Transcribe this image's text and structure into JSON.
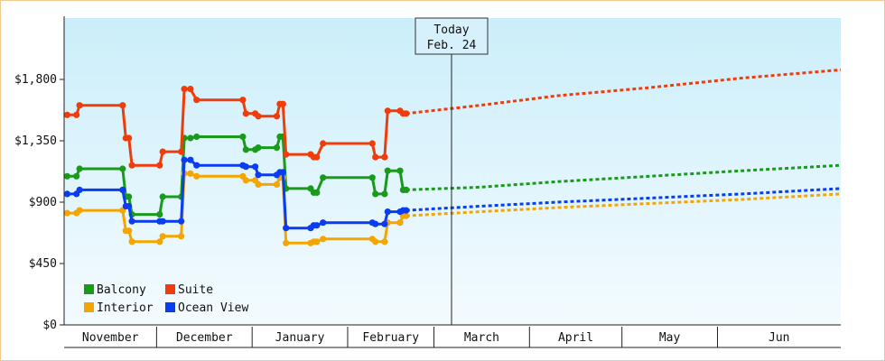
{
  "chart_data": {
    "type": "line",
    "title": "",
    "xlabel": "",
    "ylabel": "",
    "ylim": [
      0,
      2250
    ],
    "grid": false,
    "y_ticks": [
      "$0",
      "$450",
      "$900",
      "$1,350",
      "$1,800"
    ],
    "y_tick_values": [
      0,
      450,
      900,
      1350,
      1800
    ],
    "months": [
      "November",
      "December",
      "January",
      "February",
      "March",
      "April",
      "May",
      "Jun"
    ],
    "today_marker": {
      "line1": "Today",
      "line2": "Feb. 24"
    },
    "legend_position": "bottom-left",
    "series": [
      {
        "name": "Balcony",
        "color": "#1a9a1a",
        "points": [
          [
            1,
            1090
          ],
          [
            4,
            1090
          ],
          [
            5,
            1145
          ],
          [
            19,
            1145
          ],
          [
            20,
            940
          ],
          [
            21,
            940
          ],
          [
            22,
            810
          ],
          [
            31,
            810
          ],
          [
            32,
            940
          ],
          [
            38,
            940
          ],
          [
            39,
            1370
          ],
          [
            41,
            1370
          ],
          [
            43,
            1380
          ],
          [
            58,
            1380
          ],
          [
            59,
            1285
          ],
          [
            62,
            1285
          ],
          [
            63,
            1300
          ],
          [
            69,
            1300
          ],
          [
            70,
            1380
          ],
          [
            71,
            1380
          ],
          [
            72,
            1000
          ],
          [
            80,
            1000
          ],
          [
            81,
            970
          ],
          [
            82,
            970
          ],
          [
            84,
            1080
          ],
          [
            100,
            1080
          ],
          [
            101,
            960
          ],
          [
            104,
            960
          ],
          [
            105,
            1130
          ],
          [
            109,
            1130
          ],
          [
            110,
            990
          ],
          [
            111,
            990
          ]
        ],
        "forecast": [
          [
            111,
            990
          ],
          [
            135,
            1010
          ],
          [
            160,
            1050
          ],
          [
            190,
            1090
          ],
          [
            220,
            1130
          ],
          [
            252,
            1170
          ]
        ]
      },
      {
        "name": "Suite",
        "color": "#f03c0a",
        "points": [
          [
            1,
            1540
          ],
          [
            4,
            1540
          ],
          [
            5,
            1610
          ],
          [
            19,
            1610
          ],
          [
            20,
            1370
          ],
          [
            21,
            1370
          ],
          [
            22,
            1170
          ],
          [
            31,
            1170
          ],
          [
            32,
            1270
          ],
          [
            38,
            1270
          ],
          [
            39,
            1730
          ],
          [
            41,
            1730
          ],
          [
            43,
            1650
          ],
          [
            58,
            1650
          ],
          [
            59,
            1550
          ],
          [
            62,
            1550
          ],
          [
            63,
            1530
          ],
          [
            69,
            1530
          ],
          [
            70,
            1620
          ],
          [
            71,
            1620
          ],
          [
            72,
            1250
          ],
          [
            80,
            1250
          ],
          [
            81,
            1230
          ],
          [
            82,
            1230
          ],
          [
            84,
            1330
          ],
          [
            100,
            1330
          ],
          [
            101,
            1230
          ],
          [
            104,
            1230
          ],
          [
            105,
            1570
          ],
          [
            109,
            1570
          ],
          [
            110,
            1550
          ],
          [
            111,
            1550
          ]
        ],
        "forecast": [
          [
            111,
            1550
          ],
          [
            135,
            1610
          ],
          [
            160,
            1680
          ],
          [
            190,
            1740
          ],
          [
            220,
            1810
          ],
          [
            252,
            1870
          ]
        ]
      },
      {
        "name": "Interior",
        "color": "#f5a500",
        "points": [
          [
            1,
            820
          ],
          [
            4,
            820
          ],
          [
            5,
            840
          ],
          [
            19,
            840
          ],
          [
            20,
            690
          ],
          [
            21,
            690
          ],
          [
            22,
            610
          ],
          [
            31,
            610
          ],
          [
            32,
            650
          ],
          [
            38,
            650
          ],
          [
            39,
            1110
          ],
          [
            41,
            1110
          ],
          [
            43,
            1090
          ],
          [
            58,
            1090
          ],
          [
            59,
            1060
          ],
          [
            62,
            1060
          ],
          [
            63,
            1030
          ],
          [
            69,
            1030
          ],
          [
            70,
            1080
          ],
          [
            71,
            1080
          ],
          [
            72,
            600
          ],
          [
            80,
            600
          ],
          [
            81,
            610
          ],
          [
            82,
            610
          ],
          [
            84,
            630
          ],
          [
            100,
            630
          ],
          [
            101,
            610
          ],
          [
            104,
            610
          ],
          [
            105,
            750
          ],
          [
            109,
            750
          ],
          [
            110,
            800
          ],
          [
            111,
            800
          ]
        ],
        "forecast": [
          [
            111,
            800
          ],
          [
            135,
            830
          ],
          [
            160,
            860
          ],
          [
            190,
            890
          ],
          [
            220,
            920
          ],
          [
            252,
            960
          ]
        ]
      },
      {
        "name": "Ocean View",
        "color": "#0a3cf0",
        "points": [
          [
            1,
            960
          ],
          [
            4,
            960
          ],
          [
            5,
            990
          ],
          [
            19,
            990
          ],
          [
            20,
            870
          ],
          [
            21,
            870
          ],
          [
            22,
            760
          ],
          [
            31,
            760
          ],
          [
            32,
            760
          ],
          [
            38,
            760
          ],
          [
            39,
            1210
          ],
          [
            41,
            1210
          ],
          [
            43,
            1170
          ],
          [
            58,
            1170
          ],
          [
            59,
            1160
          ],
          [
            62,
            1160
          ],
          [
            63,
            1100
          ],
          [
            69,
            1100
          ],
          [
            70,
            1120
          ],
          [
            71,
            1120
          ],
          [
            72,
            710
          ],
          [
            80,
            710
          ],
          [
            81,
            730
          ],
          [
            82,
            730
          ],
          [
            84,
            750
          ],
          [
            100,
            750
          ],
          [
            101,
            740
          ],
          [
            104,
            740
          ],
          [
            105,
            830
          ],
          [
            109,
            830
          ],
          [
            110,
            840
          ],
          [
            111,
            840
          ]
        ],
        "forecast": [
          [
            111,
            840
          ],
          [
            135,
            870
          ],
          [
            160,
            900
          ],
          [
            190,
            930
          ],
          [
            220,
            960
          ],
          [
            252,
            1000
          ]
        ]
      }
    ]
  }
}
